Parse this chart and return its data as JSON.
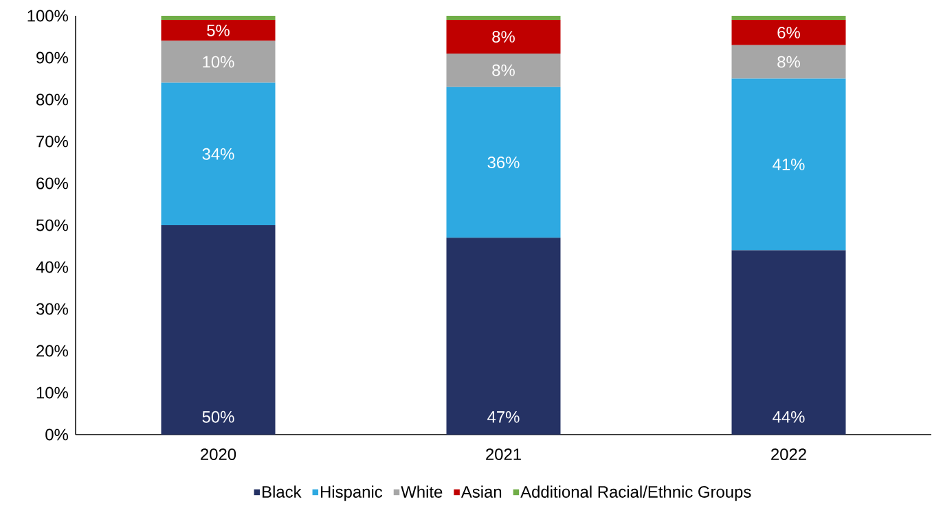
{
  "chart_data": {
    "type": "bar",
    "stacked": true,
    "categories": [
      "2020",
      "2021",
      "2022"
    ],
    "series": [
      {
        "name": "Black",
        "color": "#253264",
        "values": [
          50,
          47,
          44
        ],
        "value_labels": [
          "50%",
          "47%",
          "44%"
        ]
      },
      {
        "name": "Hispanic",
        "color": "#2ea9e1",
        "values": [
          34,
          36,
          41
        ],
        "value_labels": [
          "34%",
          "36%",
          "41%"
        ]
      },
      {
        "name": "White",
        "color": "#a6a6a6",
        "values": [
          10,
          8,
          8
        ],
        "value_labels": [
          "10%",
          "8%",
          "8%"
        ]
      },
      {
        "name": "Asian",
        "color": "#c00000",
        "values": [
          5,
          8,
          6
        ],
        "value_labels": [
          "5%",
          "8%",
          "6%"
        ]
      },
      {
        "name": "Additional Racial/Ethnic Groups",
        "color": "#70ad47",
        "values": [
          1,
          1,
          1
        ],
        "value_labels": [
          null,
          null,
          null
        ]
      }
    ],
    "ylim": [
      0,
      100
    ],
    "yticks": [
      {
        "value": 0,
        "label": "0%"
      },
      {
        "value": 10,
        "label": "10%"
      },
      {
        "value": 20,
        "label": "20%"
      },
      {
        "value": 30,
        "label": "30%"
      },
      {
        "value": 40,
        "label": "40%"
      },
      {
        "value": 50,
        "label": "50%"
      },
      {
        "value": 60,
        "label": "60%"
      },
      {
        "value": 70,
        "label": "70%"
      },
      {
        "value": 80,
        "label": "80%"
      },
      {
        "value": 90,
        "label": "90%"
      },
      {
        "value": 100,
        "label": "100%"
      }
    ],
    "legend": "bottom"
  }
}
